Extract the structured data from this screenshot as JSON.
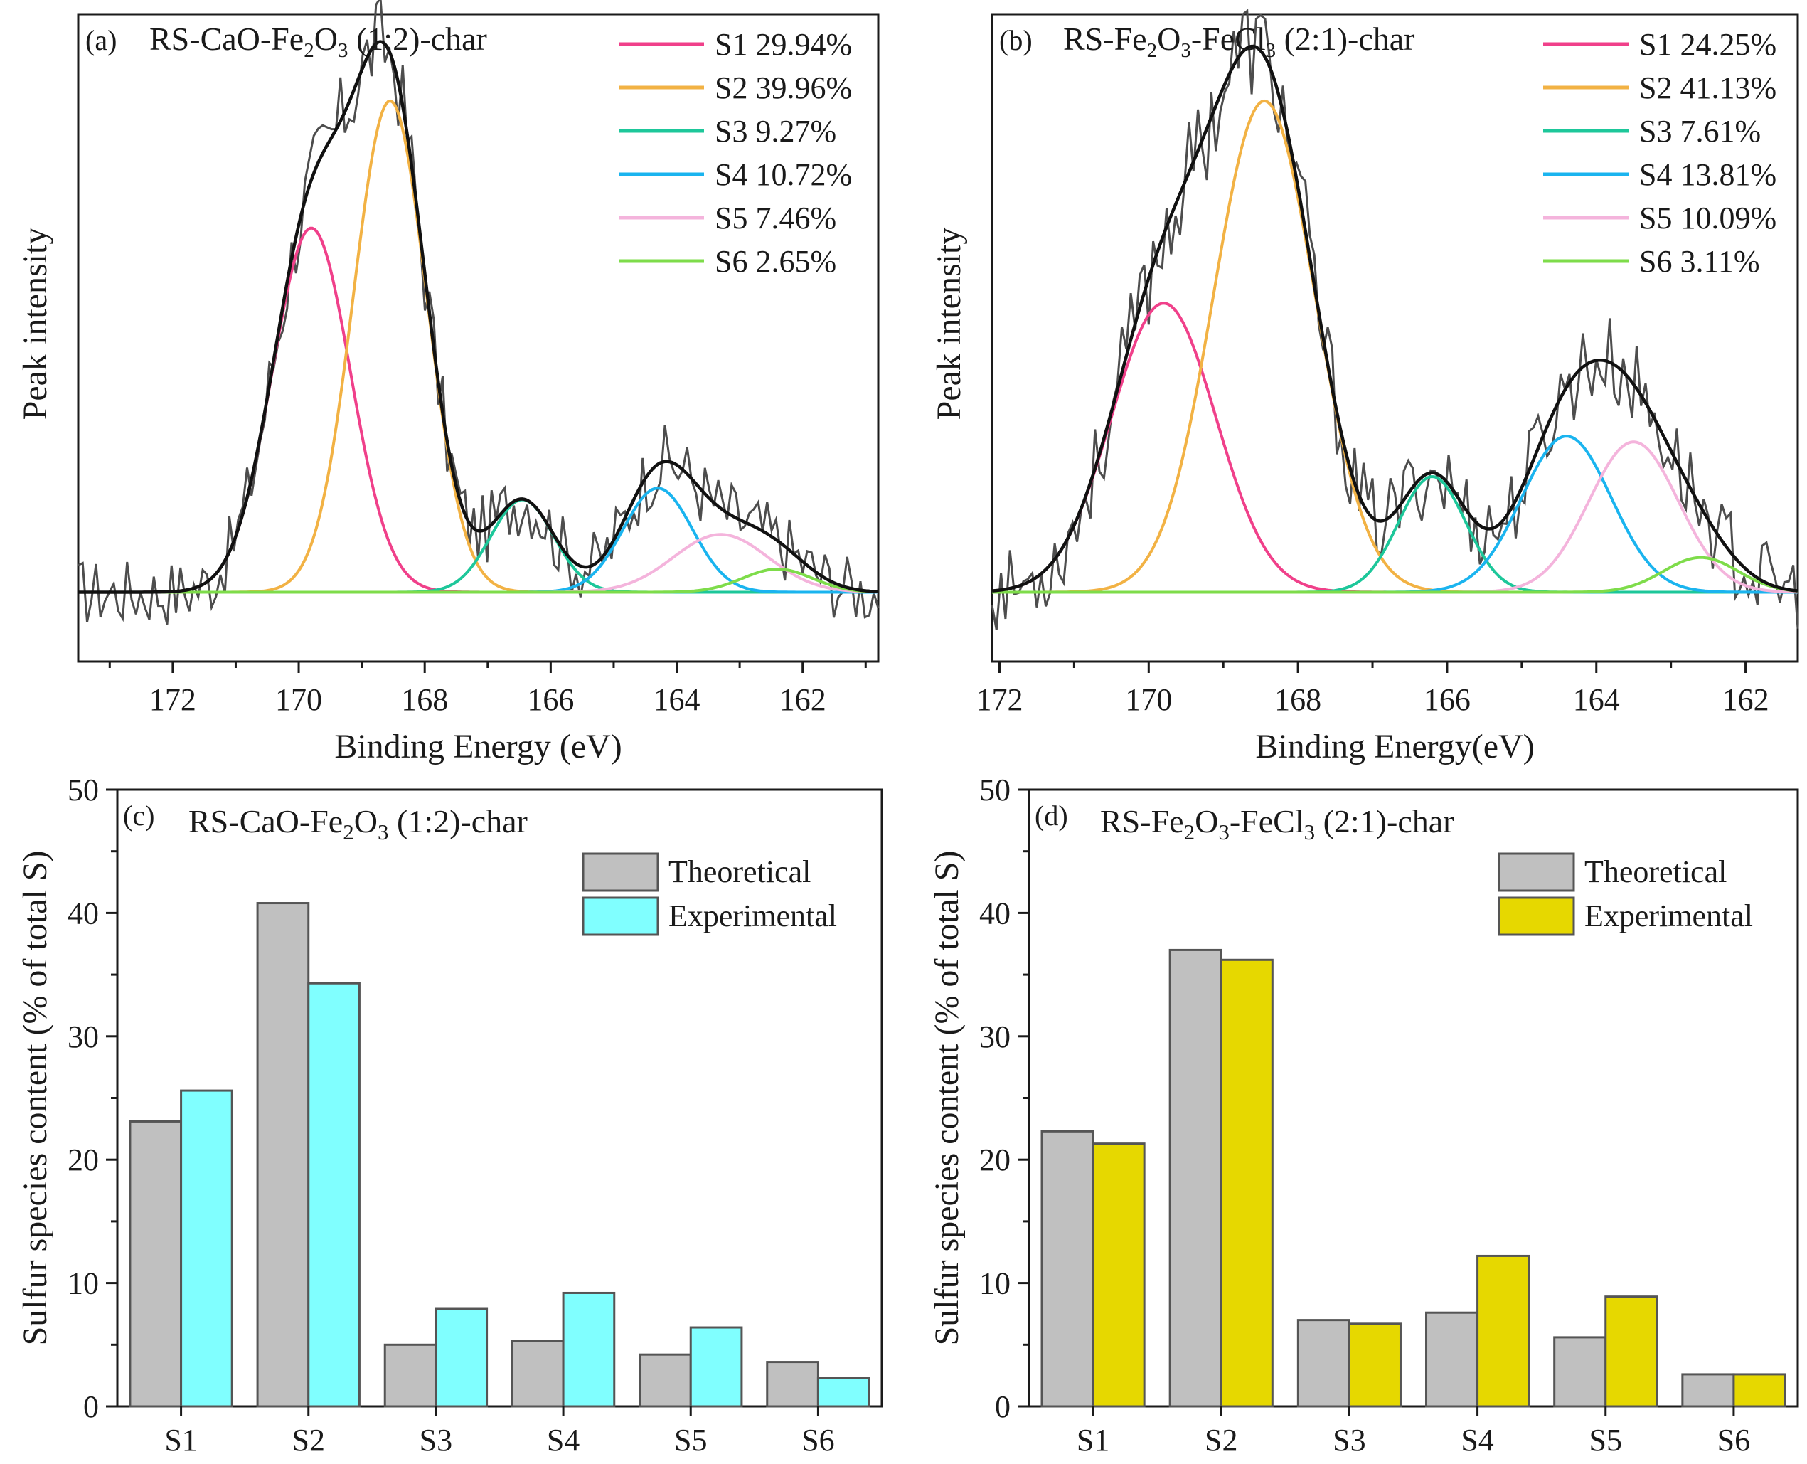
{
  "figure": {
    "xps_panels": [
      {
        "id": "a",
        "panel_label": "(a)",
        "title_parts": [
          "RS-CaO-Fe",
          "2",
          "O",
          "3",
          " (1:2)-char"
        ],
        "title_text": "RS-CaO-Fe2O3 (1:2)-char",
        "xlabel": "Binding Energy (eV)",
        "ylabel": "Peak intensity"
      },
      {
        "id": "b",
        "panel_label": "(b)",
        "title_parts": [
          "RS-Fe",
          "2",
          "O",
          "3",
          "-FeCl",
          "3",
          " (2:1)-char"
        ],
        "title_text": "RS-Fe2O3-FeCl3 (2:1)-char",
        "xlabel": "Binding Energy(eV)",
        "ylabel": "Peak intensity"
      }
    ],
    "bar_panels": [
      {
        "id": "c",
        "panel_label": "(c)",
        "title_parts": [
          "RS-CaO-Fe",
          "2",
          "O",
          "3",
          " (1:2)-char"
        ],
        "title_text": "RS-CaO-Fe2O3 (1:2)-char",
        "ylabel": "Sulfur species content (% of total S)"
      },
      {
        "id": "d",
        "panel_label": "(d)",
        "title_parts": [
          "RS-Fe",
          "2",
          "O",
          "3",
          "-FeCl",
          "3",
          " (2:1)-char"
        ],
        "title_text": "RS-Fe2O3-FeCl3 (2:1)-char",
        "ylabel": "Sulfur species content (% of total S)"
      }
    ]
  },
  "chart_data": [
    {
      "panel": "a",
      "type": "line",
      "title": "RS-CaO-Fe2O3 (1:2)-char",
      "xlabel": "Binding Energy (eV)",
      "ylabel": "Peak intensity",
      "xlim": [
        173.5,
        160.8
      ],
      "ylim": [
        -0.12,
        1.0
      ],
      "xticks": [
        172,
        170,
        168,
        166,
        164,
        162
      ],
      "peaks": [
        {
          "name": "S1",
          "label": "S1 29.94%",
          "center": 169.8,
          "height": 0.63,
          "sigma": 0.62,
          "color": "#f0408a"
        },
        {
          "name": "S2",
          "label": "S2 39.96%",
          "center": 168.55,
          "height": 0.85,
          "sigma": 0.58,
          "color": "#f2b244"
        },
        {
          "name": "S3",
          "label": "S3 9.27%",
          "center": 166.45,
          "height": 0.16,
          "sigma": 0.5,
          "color": "#1dc79a"
        },
        {
          "name": "S4",
          "label": "S4 10.72%",
          "center": 164.3,
          "height": 0.18,
          "sigma": 0.55,
          "color": "#1ab4ef"
        },
        {
          "name": "S5",
          "label": "S5 7.46%",
          "center": 163.3,
          "height": 0.1,
          "sigma": 0.75,
          "color": "#f4b4dc"
        },
        {
          "name": "S6",
          "label": "S6 2.65%",
          "center": 162.4,
          "height": 0.04,
          "sigma": 0.55,
          "color": "#7edc4a"
        }
      ],
      "envelope": {
        "name": "Cumulative fit",
        "color": "#111111"
      },
      "raw_data": {
        "name": "Measured",
        "noise_amplitude": 0.06,
        "color": "#4d4d4d"
      }
    },
    {
      "panel": "b",
      "type": "line",
      "title": "RS-Fe2O3-FeCl3 (2:1)-char",
      "xlabel": "Binding Energy(eV)",
      "ylabel": "Peak intensity",
      "xlim": [
        172.1,
        161.3
      ],
      "ylim": [
        -0.12,
        1.0
      ],
      "xticks": [
        172,
        170,
        168,
        166,
        164,
        162
      ],
      "peaks": [
        {
          "name": "S1",
          "label": "S1 24.25%",
          "center": 169.8,
          "height": 0.5,
          "sigma": 0.7,
          "color": "#f0408a"
        },
        {
          "name": "S2",
          "label": "S2 41.13%",
          "center": 168.45,
          "height": 0.85,
          "sigma": 0.68,
          "color": "#f2b244"
        },
        {
          "name": "S3",
          "label": "S3 7.61%",
          "center": 166.2,
          "height": 0.2,
          "sigma": 0.45,
          "color": "#1dc79a"
        },
        {
          "name": "S4",
          "label": "S4 13.81%",
          "center": 164.4,
          "height": 0.27,
          "sigma": 0.6,
          "color": "#1ab4ef"
        },
        {
          "name": "S5",
          "label": "S5 10.09%",
          "center": 163.5,
          "height": 0.26,
          "sigma": 0.6,
          "color": "#f4b4dc"
        },
        {
          "name": "S6",
          "label": "S6 3.11%",
          "center": 162.6,
          "height": 0.06,
          "sigma": 0.5,
          "color": "#7edc4a"
        }
      ],
      "envelope": {
        "name": "Cumulative fit",
        "color": "#111111"
      },
      "raw_data": {
        "name": "Measured",
        "noise_amplitude": 0.07,
        "color": "#4d4d4d"
      }
    },
    {
      "panel": "c",
      "type": "bar",
      "title": "RS-CaO-Fe2O3 (1:2)-char",
      "xlabel": "",
      "ylabel": "Sulfur species content (% of total S)",
      "ylim": [
        0,
        50
      ],
      "yticks": [
        0,
        10,
        20,
        30,
        40,
        50
      ],
      "categories": [
        "S1",
        "S2",
        "S3",
        "S4",
        "S5",
        "S6"
      ],
      "series": [
        {
          "name": "Theoretical",
          "color": "#c0c0c0",
          "values": [
            23.1,
            40.8,
            5.0,
            5.3,
            4.2,
            3.6
          ]
        },
        {
          "name": "Experimental",
          "color": "#80ffff",
          "values": [
            25.6,
            34.3,
            7.9,
            9.2,
            6.4,
            2.3
          ]
        }
      ]
    },
    {
      "panel": "d",
      "type": "bar",
      "title": "RS-Fe2O3-FeCl3 (2:1)-char",
      "xlabel": "",
      "ylabel": "Sulfur species content (% of total S)",
      "ylim": [
        0,
        50
      ],
      "yticks": [
        0,
        10,
        20,
        30,
        40,
        50
      ],
      "categories": [
        "S1",
        "S2",
        "S3",
        "S4",
        "S5",
        "S6"
      ],
      "series": [
        {
          "name": "Theoretical",
          "color": "#c0c0c0",
          "values": [
            22.3,
            37.0,
            7.0,
            7.6,
            5.6,
            2.6
          ]
        },
        {
          "name": "Experimental",
          "color": "#e6d800",
          "values": [
            21.3,
            36.2,
            6.7,
            12.2,
            8.9,
            2.6
          ]
        }
      ]
    }
  ]
}
